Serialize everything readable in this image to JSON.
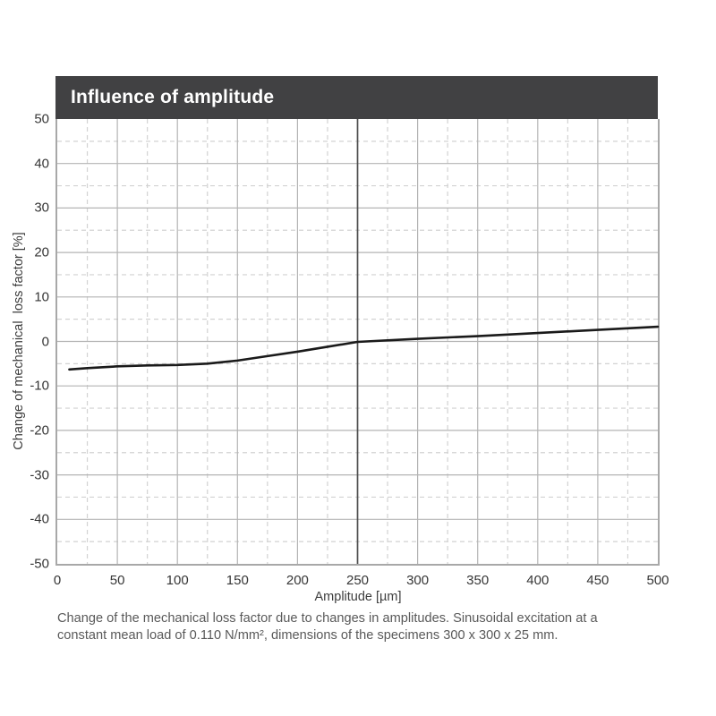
{
  "page": {
    "background": "#ffffff"
  },
  "header": {
    "title": "Influence of amplitude",
    "bg_color": "#414143",
    "text_color": "#ffffff"
  },
  "chart_data": {
    "type": "line",
    "title": "Influence of amplitude",
    "xlabel": "Amplitude [µm]",
    "ylabel": "Change of mechanical  loss factor [%]",
    "xlim": [
      0,
      500
    ],
    "ylim": [
      -50,
      50
    ],
    "x_ticks": [
      0,
      50,
      100,
      150,
      200,
      250,
      300,
      350,
      400,
      450,
      500
    ],
    "y_ticks": [
      50,
      40,
      30,
      20,
      10,
      0,
      -10,
      -20,
      -30,
      -40,
      -50
    ],
    "x_minor_step": 25,
    "y_minor_step": 5,
    "grid": "major solid, minor dashed",
    "legend": "none",
    "reference_line_x": 250,
    "series": [
      {
        "name": "change of mechanical loss factor",
        "color": "#1a1a1a",
        "x": [
          10,
          25,
          50,
          75,
          100,
          125,
          150,
          175,
          200,
          225,
          250,
          300,
          350,
          400,
          450,
          500
        ],
        "y": [
          -6.3,
          -6.0,
          -5.6,
          -5.4,
          -5.3,
          -5.0,
          -4.3,
          -3.3,
          -2.3,
          -1.2,
          -0.1,
          0.6,
          1.2,
          1.9,
          2.6,
          3.3
        ]
      }
    ]
  },
  "caption": {
    "lines": [
      "Change of the mechanical loss factor due to changes in amplitudes. Sinusoidal excitation at a",
      "constant mean load of 0.110 N/mm², dimensions of the specimens 300 x 300 x 25 mm."
    ]
  },
  "colors": {
    "major_grid": "#b4b4b4",
    "minor_grid": "#d2d2d2",
    "spine": "#a8a8a8",
    "reference_line": "#4f4f4f",
    "curve": "#1a1a1a",
    "tick_label": "#363636",
    "caption_text": "#595959"
  }
}
